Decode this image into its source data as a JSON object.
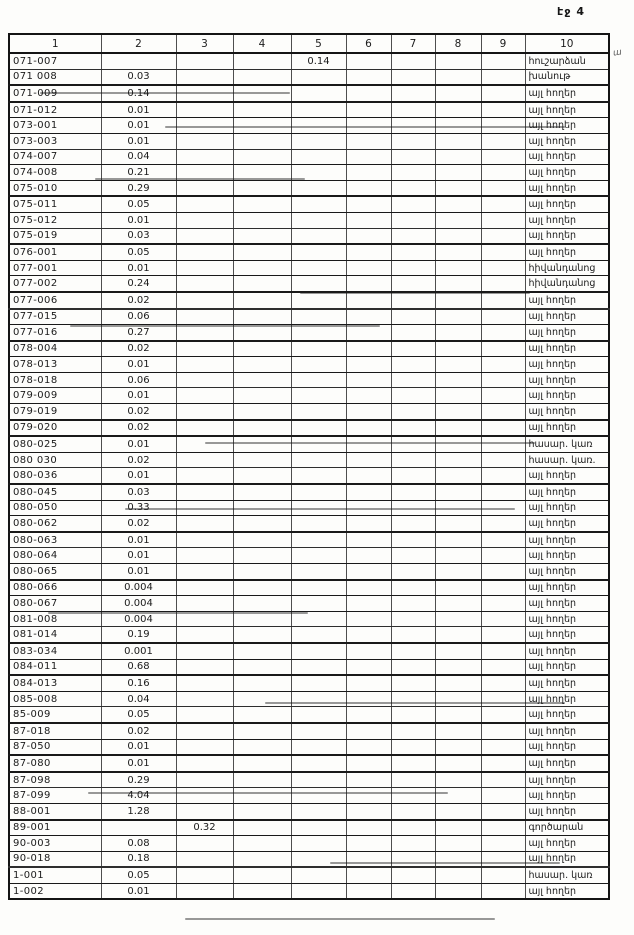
{
  "page": {
    "label": "էջ 4",
    "margin_mark": "ա",
    "background_color": "#fdfdfb",
    "ink_color": "#1b1b1b"
  },
  "table": {
    "headers": [
      "1",
      "2",
      "3",
      "4",
      "5",
      "6",
      "7",
      "8",
      "9",
      "10"
    ],
    "rows": [
      [
        "071-007",
        "",
        "",
        "",
        "0.14",
        "",
        "",
        "",
        "",
        "հուշարձան"
      ],
      [
        "071 008",
        "0.03",
        "",
        "",
        "",
        "",
        "",
        "",
        "",
        "խանութ"
      ],
      [
        "071-009",
        "0.14",
        "",
        "",
        "",
        "",
        "",
        "",
        "",
        "այլ հողեր"
      ],
      [
        "071-012",
        "0.01",
        "",
        "",
        "",
        "",
        "",
        "",
        "",
        "այլ հողեր"
      ],
      [
        "073-001",
        "0.01",
        "",
        "",
        "",
        "",
        "",
        "",
        "",
        "այլ հողեր"
      ],
      [
        "073-003",
        "0.01",
        "",
        "",
        "",
        "",
        "",
        "",
        "",
        "այլ հողեր"
      ],
      [
        "074-007",
        "0.04",
        "",
        "",
        "",
        "",
        "",
        "",
        "",
        "այլ հողեր"
      ],
      [
        "074-008",
        "0.21",
        "",
        "",
        "",
        "",
        "",
        "",
        "",
        "այլ հողեր"
      ],
      [
        "075-010",
        "0.29",
        "",
        "",
        "",
        "",
        "",
        "",
        "",
        "այլ հողեր"
      ],
      [
        "075-011",
        "0.05",
        "",
        "",
        "",
        "",
        "",
        "",
        "",
        "այլ հողեր"
      ],
      [
        "075-012",
        "0.01",
        "",
        "",
        "",
        "",
        "",
        "",
        "",
        "այլ հողեր"
      ],
      [
        "075-019",
        "0.03",
        "",
        "",
        "",
        "",
        "",
        "",
        "",
        "այլ հողեր"
      ],
      [
        "076-001",
        "0.05",
        "",
        "",
        "",
        "",
        "",
        "",
        "",
        "այլ հողեր"
      ],
      [
        "077-001",
        "0.01",
        "",
        "",
        "",
        "",
        "",
        "",
        "",
        "հիվանդանոց"
      ],
      [
        "077-002",
        "0.24",
        "",
        "",
        "",
        "",
        "",
        "",
        "",
        "հիվանդանոց"
      ],
      [
        "077-006",
        "0.02",
        "",
        "",
        "",
        "",
        "",
        "",
        "",
        "այլ հողեր"
      ],
      [
        "077-015",
        "0.06",
        "",
        "",
        "",
        "",
        "",
        "",
        "",
        "այլ հողեր"
      ],
      [
        "077-016",
        "0.27",
        "",
        "",
        "",
        "",
        "",
        "",
        "",
        "այլ հողեր"
      ],
      [
        "078-004",
        "0.02",
        "",
        "",
        "",
        "",
        "",
        "",
        "",
        "այլ հողեր"
      ],
      [
        "078-013",
        "0.01",
        "",
        "",
        "",
        "",
        "",
        "",
        "",
        "այլ հողեր"
      ],
      [
        "078-018",
        "0.06",
        "",
        "",
        "",
        "",
        "",
        "",
        "",
        "այլ հողեր"
      ],
      [
        "079-009",
        "0.01",
        "",
        "",
        "",
        "",
        "",
        "",
        "",
        "այլ հողեր"
      ],
      [
        "079-019",
        "0.02",
        "",
        "",
        "",
        "",
        "",
        "",
        "",
        "այլ հողեր"
      ],
      [
        "079-020",
        "0.02",
        "",
        "",
        "",
        "",
        "",
        "",
        "",
        "այլ հողեր"
      ],
      [
        "080-025",
        "0.01",
        "",
        "",
        "",
        "",
        "",
        "",
        "",
        "հասար. կառ"
      ],
      [
        "080 030",
        "0.02",
        "",
        "",
        "",
        "",
        "",
        "",
        "",
        "հասար. կառ."
      ],
      [
        "080-036",
        "0.01",
        "",
        "",
        "",
        "",
        "",
        "",
        "",
        "այլ հողեր"
      ],
      [
        "080-045",
        "0.03",
        "",
        "",
        "",
        "",
        "",
        "",
        "",
        "այլ հողեր"
      ],
      [
        "080-050",
        "0.33",
        "",
        "",
        "",
        "",
        "",
        "",
        "",
        "այլ հողեր"
      ],
      [
        "080-062",
        "0.02",
        "",
        "",
        "",
        "",
        "",
        "",
        "",
        "այլ հողեր"
      ],
      [
        "080-063",
        "0.01",
        "",
        "",
        "",
        "",
        "",
        "",
        "",
        "այլ հողեր"
      ],
      [
        "080-064",
        "0.01",
        "",
        "",
        "",
        "",
        "",
        "",
        "",
        "այլ հողեր"
      ],
      [
        "080-065",
        "0.01",
        "",
        "",
        "",
        "",
        "",
        "",
        "",
        "այլ հողեր"
      ],
      [
        "080-066",
        "0.004",
        "",
        "",
        "",
        "",
        "",
        "",
        "",
        "այլ հողեր"
      ],
      [
        "080-067",
        "0.004",
        "",
        "",
        "",
        "",
        "",
        "",
        "",
        "այլ հողեր"
      ],
      [
        "081-008",
        "0.004",
        "",
        "",
        "",
        "",
        "",
        "",
        "",
        "այլ հողեր"
      ],
      [
        "081-014",
        "0.19",
        "",
        "",
        "",
        "",
        "",
        "",
        "",
        "այլ հողեր"
      ],
      [
        "083-034",
        "0.001",
        "",
        "",
        "",
        "",
        "",
        "",
        "",
        "այլ հողեր"
      ],
      [
        "084-011",
        "0.68",
        "",
        "",
        "",
        "",
        "",
        "",
        "",
        "այլ հողեր"
      ],
      [
        "084-013",
        "0.16",
        "",
        "",
        "",
        "",
        "",
        "",
        "",
        "այլ հողեր"
      ],
      [
        "085-008",
        "0.04",
        "",
        "",
        "",
        "",
        "",
        "",
        "",
        "այլ հողեր"
      ],
      [
        "85-009",
        "0.05",
        "",
        "",
        "",
        "",
        "",
        "",
        "",
        "այլ հողեր"
      ],
      [
        "87-018",
        "0.02",
        "",
        "",
        "",
        "",
        "",
        "",
        "",
        "այլ հողեր"
      ],
      [
        "87-050",
        "0.01",
        "",
        "",
        "",
        "",
        "",
        "",
        "",
        "այլ հողեր"
      ],
      [
        "87-080",
        "0.01",
        "",
        "",
        "",
        "",
        "",
        "",
        "",
        "այլ հողեր"
      ],
      [
        "87-098",
        "0.29",
        "",
        "",
        "",
        "",
        "",
        "",
        "",
        "այլ հողեր"
      ],
      [
        "87-099",
        "4.04",
        "",
        "",
        "",
        "",
        "",
        "",
        "",
        "այլ հողեր"
      ],
      [
        "88-001",
        "1.28",
        "",
        "",
        "",
        "",
        "",
        "",
        "",
        "այլ հողեր"
      ],
      [
        "89-001",
        "",
        "0.32",
        "",
        "",
        "",
        "",
        "",
        "",
        "գործարան"
      ],
      [
        "90-003",
        "0.08",
        "",
        "",
        "",
        "",
        "",
        "",
        "",
        "այլ հողեր"
      ],
      [
        "90-018",
        "0.18",
        "",
        "",
        "",
        "",
        "",
        "",
        "",
        "այլ հողեր"
      ],
      [
        "1-001",
        "0.05",
        "",
        "",
        "",
        "",
        "",
        "",
        "",
        "հասար. կառ"
      ],
      [
        "1-002",
        "0.01",
        "",
        "",
        "",
        "",
        "",
        "",
        "",
        "այլ հողեր"
      ]
    ]
  }
}
